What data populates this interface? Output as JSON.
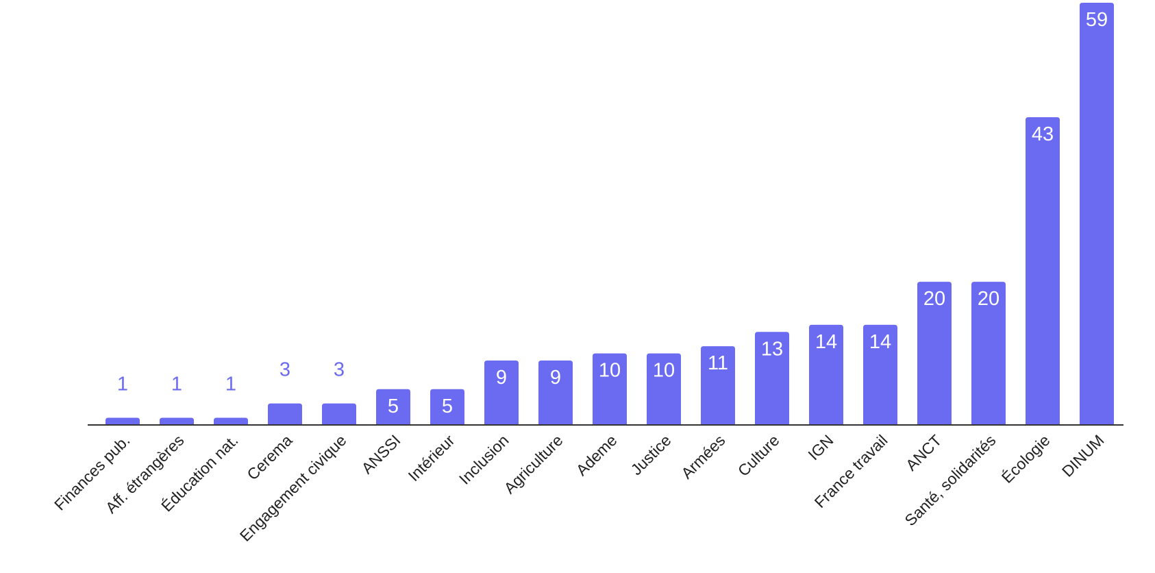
{
  "chart_data": {
    "type": "bar",
    "categories": [
      "Finances pub.",
      "Aff. étrangères",
      "Éducation nat.",
      "Cerema",
      "Engagement civique",
      "ANSSI",
      "Intérieur",
      "Inclusion",
      "Agriculture",
      "Ademe",
      "Justice",
      "Armées",
      "Culture",
      "IGN",
      "France travail",
      "ANCT",
      "Santé, solidarités",
      "Écologie",
      "DINUM"
    ],
    "values": [
      1,
      1,
      1,
      3,
      3,
      5,
      5,
      9,
      9,
      10,
      10,
      11,
      13,
      14,
      14,
      20,
      20,
      43,
      59
    ],
    "title": "",
    "xlabel": "",
    "ylabel": "",
    "ylim": [
      0,
      59
    ],
    "grid": false,
    "legend": "none",
    "colors": {
      "bar": "#6b6bf2",
      "label_inside": "#ffffff",
      "label_outside": "#6b6bf2",
      "axis": "#333333",
      "tick_label": "#222222"
    }
  }
}
